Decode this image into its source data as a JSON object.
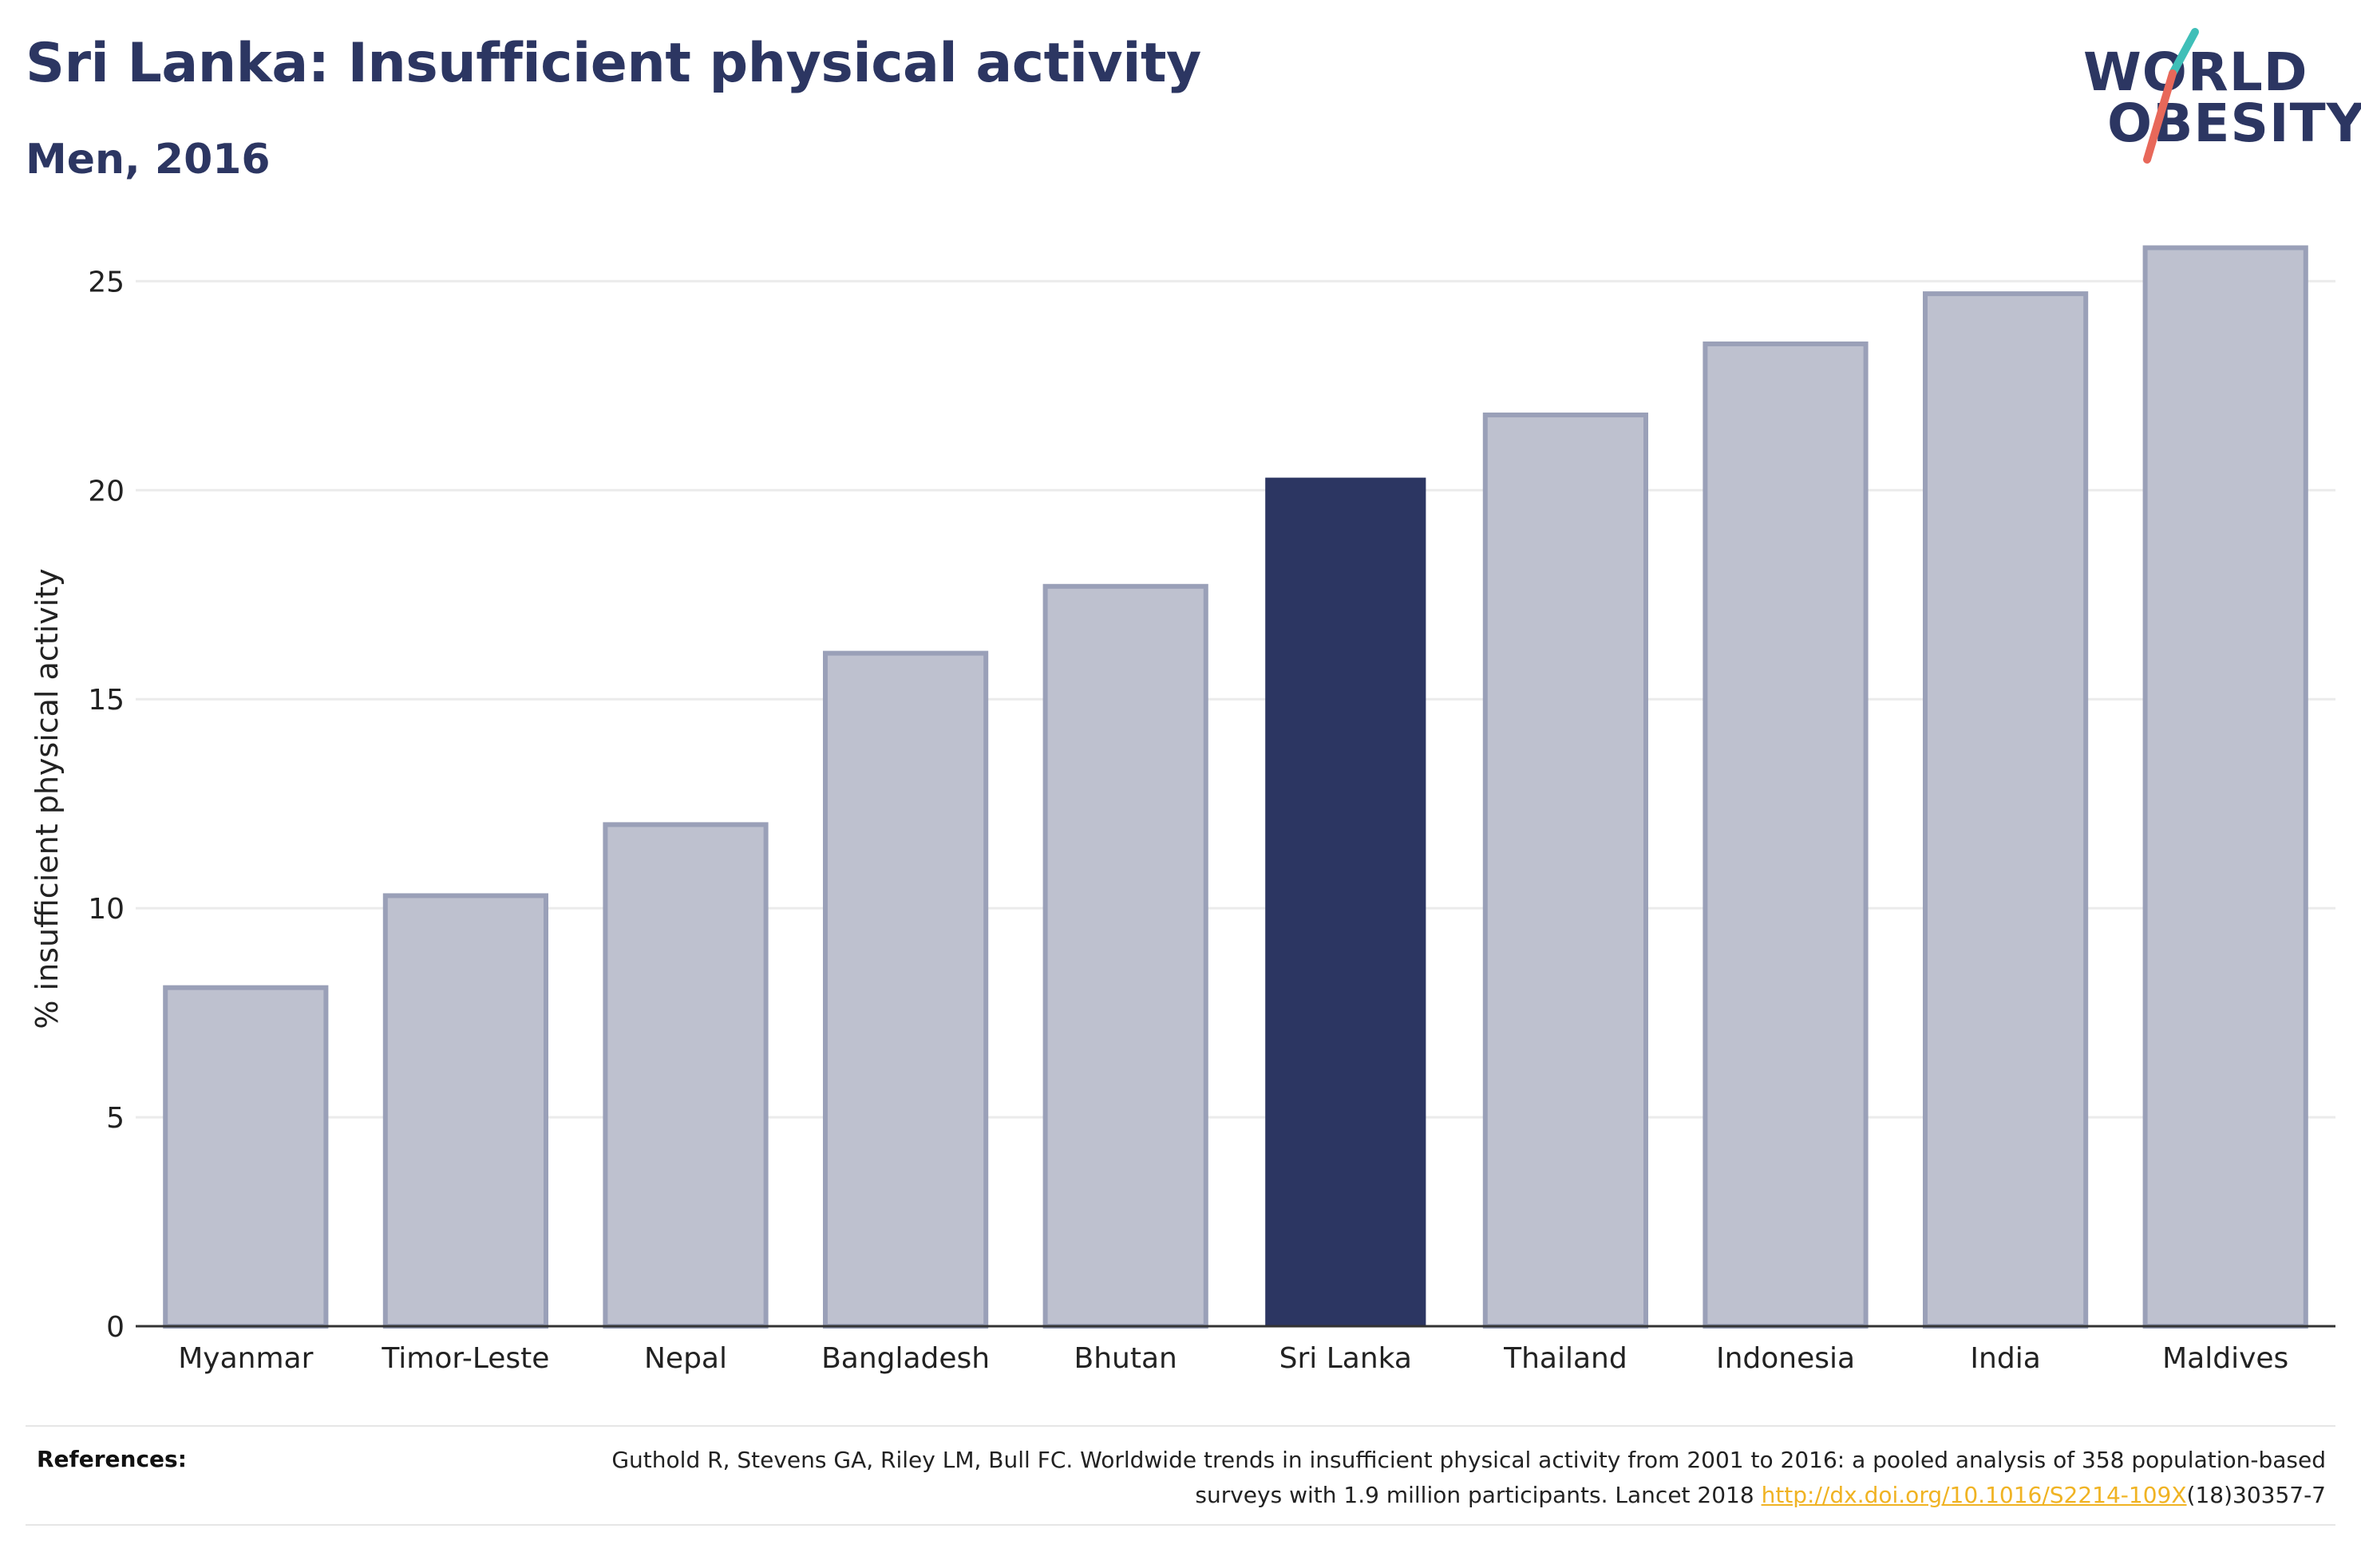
{
  "header": {
    "title": "Sri Lanka: Insufficient physical activity",
    "subtitle": "Men, 2016"
  },
  "logo": {
    "line1": "WORLD",
    "line2": "OBESITY",
    "accent_teal": "#3fbfb8",
    "accent_coral": "#e8685a"
  },
  "colors": {
    "highlight": "#2c3662",
    "bar_fill": "#bec1cf",
    "bar_outline": "#9aa0b8",
    "grid": "#ebebeb",
    "axis_text": "#222222"
  },
  "chart_data": {
    "type": "bar",
    "title": "Sri Lanka: Insufficient physical activity",
    "subtitle": "Men, 2016",
    "xlabel": "",
    "ylabel": "% insufficient physical activity",
    "ylim": [
      0,
      26
    ],
    "yticks": [
      0,
      5,
      10,
      15,
      20,
      25
    ],
    "grid": true,
    "categories": [
      "Myanmar",
      "Timor-Leste",
      "Nepal",
      "Bangladesh",
      "Bhutan",
      "Sri Lanka",
      "Thailand",
      "Indonesia",
      "India",
      "Maldives"
    ],
    "values": [
      8.1,
      10.3,
      12.0,
      16.1,
      17.7,
      20.3,
      21.8,
      23.5,
      24.7,
      25.8
    ],
    "highlight": "Sri Lanka"
  },
  "references": {
    "label": "References:",
    "text_before": "Guthold R, Stevens GA, Riley LM, Bull FC. Worldwide trends in insufficient physical activity from 2001 to 2016: a pooled analysis of 358 population-based surveys with 1.9 million participants. Lancet 2018 ",
    "link": "http://dx.doi.org/10.1016/S2214-109X",
    "text_after": "(18)30357-7"
  }
}
